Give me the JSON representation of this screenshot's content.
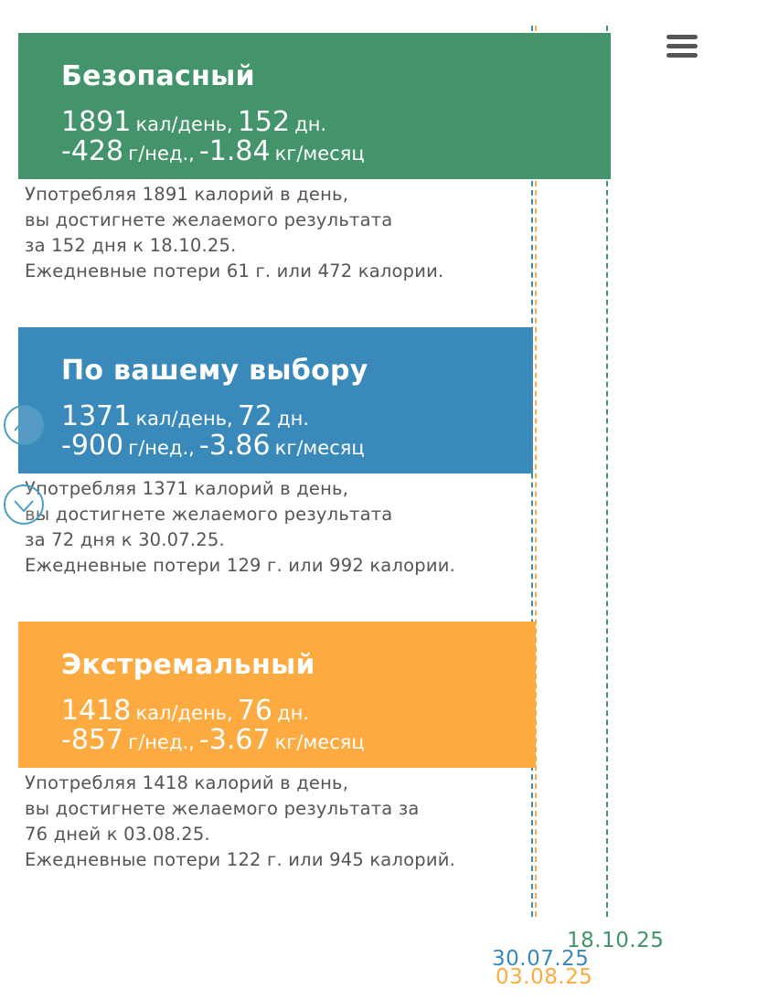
{
  "colors": {
    "safe": "#43946a",
    "choice": "#3a89bb",
    "extreme": "#fdab41",
    "text": "#555555"
  },
  "plans": {
    "safe": {
      "name": "Безопасный",
      "kcal": "1891",
      "kcal_unit": "кал/день,",
      "days": "152",
      "days_unit": "дн.",
      "week": "-428",
      "week_unit": "г/нед.,",
      "month": "-1.84",
      "month_unit": "кг/месяц",
      "desc": [
        "Употребляя 1891 калорий в день,",
        "вы достигнете желаемого результата",
        "за 152 дня к 18.10.25.",
        "Ежедневные потери 61 г. или 472 калории."
      ],
      "date": "18.10.25"
    },
    "choice": {
      "name": "По вашему выбору",
      "kcal": "1371",
      "kcal_unit": "кал/день,",
      "days": "72",
      "days_unit": "дн.",
      "week": "-900",
      "week_unit": "г/нед.,",
      "month": "-3.86",
      "month_unit": "кг/месяц",
      "desc": [
        "Употребляя 1371 калорий в день,",
        "вы достигнете желаемого результата",
        "за 72 дня к 30.07.25.",
        "Ежедневные потери 129 г. или 992 калории."
      ],
      "date": "30.07.25"
    },
    "extreme": {
      "name": "Экстремальный",
      "kcal": "1418",
      "kcal_unit": "кал/день,",
      "days": "76",
      "days_unit": "дн.",
      "week": "-857",
      "week_unit": "г/нед.,",
      "month": "-3.67",
      "month_unit": "кг/месяц",
      "desc": [
        "Употребляя 1418 калорий в день,",
        "вы достигнете желаемого результата за",
        "76 дней к 03.08.25.",
        "Ежедневные потери 122 г. или 945 калорий."
      ],
      "date": "03.08.25"
    }
  },
  "icons": {
    "menu": "hamburger-menu-icon",
    "up": "chevron-up-circle-icon",
    "down": "chevron-down-circle-icon"
  }
}
